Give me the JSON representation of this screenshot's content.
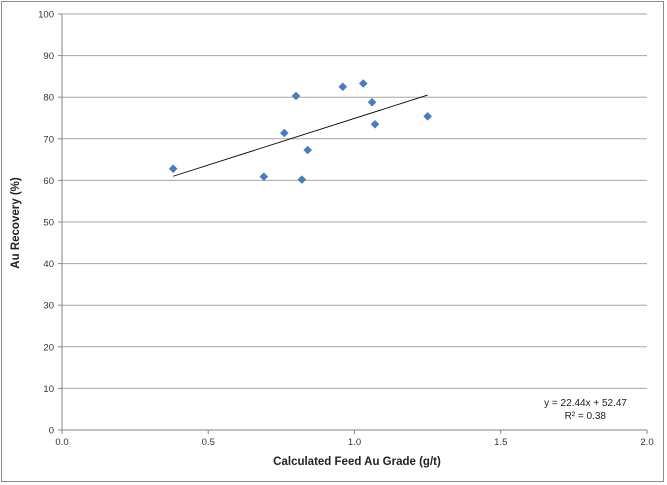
{
  "chart_data": {
    "type": "scatter",
    "xlabel": "Calculated Feed Au Grade (g/t)",
    "ylabel": "Au Recovery (%)",
    "xlim": [
      0.0,
      2.0
    ],
    "ylim": [
      0,
      100
    ],
    "x_ticks": [
      "0.0",
      "0.5",
      "1.0",
      "1.5",
      "2.0"
    ],
    "y_ticks": [
      "0",
      "10",
      "20",
      "30",
      "40",
      "50",
      "60",
      "70",
      "80",
      "90",
      "100"
    ],
    "grid": "horizontal",
    "legend": "none",
    "series": [
      {
        "marker": "diamond",
        "color": "#4a7ebb",
        "points": [
          {
            "x": 0.38,
            "y": 62.8
          },
          {
            "x": 0.69,
            "y": 60.9
          },
          {
            "x": 0.76,
            "y": 71.4
          },
          {
            "x": 0.8,
            "y": 80.3
          },
          {
            "x": 0.82,
            "y": 60.2
          },
          {
            "x": 0.84,
            "y": 67.3
          },
          {
            "x": 0.96,
            "y": 82.5
          },
          {
            "x": 1.03,
            "y": 83.3
          },
          {
            "x": 1.06,
            "y": 78.8
          },
          {
            "x": 1.07,
            "y": 73.5
          },
          {
            "x": 1.25,
            "y": 75.4
          }
        ]
      }
    ],
    "trendline": {
      "type": "linear",
      "slope": 22.44,
      "intercept": 52.47,
      "x_range": [
        0.38,
        1.25
      ],
      "color": "#000000"
    },
    "annotation": {
      "equation": "y = 22.44x + 52.47",
      "r_squared": "R² = 0.38"
    }
  }
}
